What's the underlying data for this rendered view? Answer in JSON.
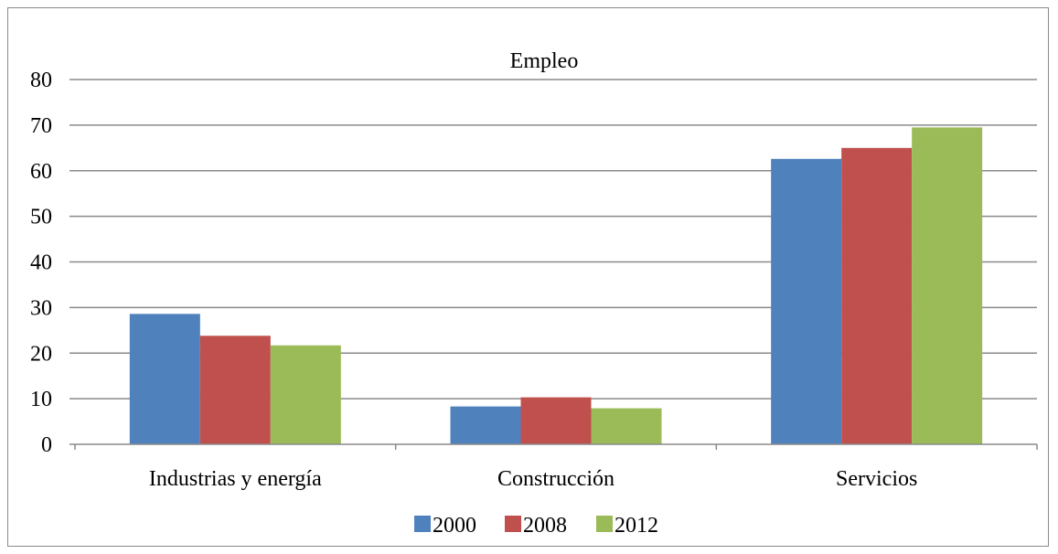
{
  "chart_data": {
    "type": "bar",
    "title": "Empleo",
    "categories": [
      "Industrias y energía",
      "Construcción",
      "Servicios"
    ],
    "series": [
      {
        "name": "2000",
        "color": "#4f81bd",
        "values": [
          28.6,
          8.3,
          62.6
        ]
      },
      {
        "name": "2008",
        "color": "#c0504d",
        "values": [
          23.8,
          10.3,
          65.0
        ]
      },
      {
        "name": "2012",
        "color": "#9bbb59",
        "values": [
          21.7,
          7.9,
          69.5
        ]
      }
    ],
    "ylim": [
      0,
      80
    ],
    "yticks": [
      "0",
      "10",
      "20",
      "30",
      "40",
      "50",
      "60",
      "70",
      "80"
    ],
    "grid": true,
    "legend_position": "bottom"
  }
}
